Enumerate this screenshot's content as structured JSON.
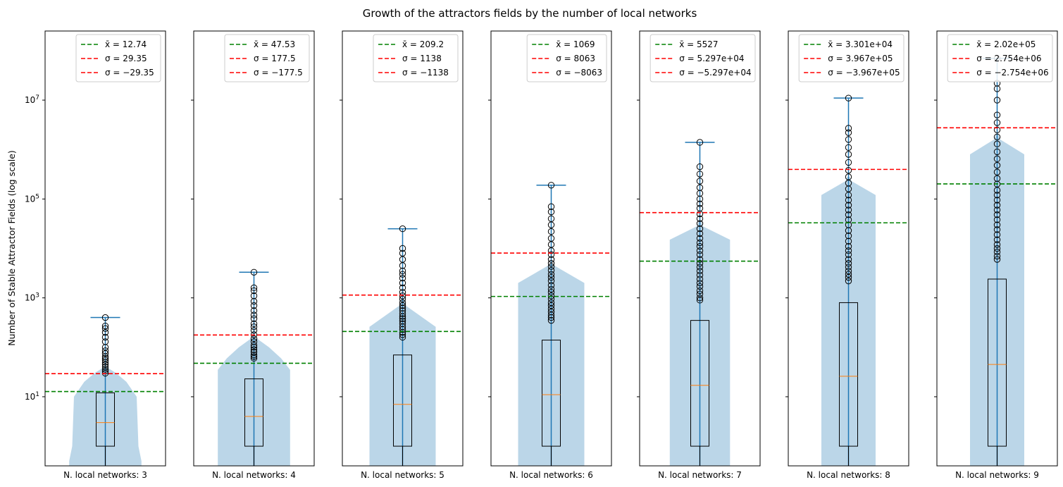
{
  "chart_data": {
    "type": "box+violin",
    "title": "Growth of the attractors fields by the number of local networks",
    "ylabel": "Number of Stable Attractor Fields (log scale)",
    "yscale": "log",
    "ylim": [
      0.4,
      250000000
    ],
    "y_ticks": [
      {
        "value": 10,
        "label": "10^1"
      },
      {
        "value": 1000,
        "label": "10^3"
      },
      {
        "value": 100000,
        "label": "10^5"
      },
      {
        "value": 10000000,
        "label": "10^7"
      }
    ],
    "colors": {
      "mean_line": "#008000",
      "sigma_line": "#ff0000",
      "violin": "#1f77b4",
      "median": "#ff7f0e",
      "whisker": "#1f77b4",
      "box": "#000000"
    },
    "legend_position": "upper right",
    "panels": [
      {
        "xlabel": "N. local networks: 3",
        "mean": 12.74,
        "std": 29.35,
        "legend": [
          "x̄ = 12.74",
          "σ = 29.35",
          "σ = −29.35"
        ],
        "box": {
          "min": 1,
          "q1": 1,
          "median": 3,
          "q3": 12,
          "max": 400
        },
        "outliers": [
          30,
          33,
          36,
          40,
          45,
          50,
          55,
          60,
          65,
          75,
          85,
          100,
          130,
          160,
          200,
          240,
          270,
          400
        ],
        "violin": {
          "y": [
            0.4,
            0.5,
            1,
            10,
            20,
            30,
            40
          ],
          "half_width": [
            0.6,
            0.6,
            0.55,
            0.52,
            0.35,
            0.18,
            0.02
          ]
        }
      },
      {
        "xlabel": "N. local networks: 4",
        "mean": 47.53,
        "std": 177.5,
        "legend": [
          "x̄ = 47.53",
          "σ = 177.5",
          "σ = −177.5"
        ],
        "box": {
          "min": 1,
          "q1": 1,
          "median": 4,
          "q3": 23,
          "max": 3300
        },
        "outliers": [
          60,
          65,
          70,
          80,
          90,
          100,
          110,
          130,
          150,
          180,
          220,
          260,
          300,
          380,
          450,
          550,
          700,
          850,
          1100,
          1400,
          1600,
          3300
        ],
        "violin": {
          "y": [
            0.4,
            35,
            60,
            100,
            130,
            160
          ],
          "half_width": [
            0.6,
            0.6,
            0.45,
            0.25,
            0.12,
            0.02
          ]
        }
      },
      {
        "xlabel": "N. local networks: 5",
        "mean": 209.2,
        "std": 1138,
        "legend": [
          "x̄ = 209.2",
          "σ = 1138",
          "σ = −1138"
        ],
        "box": {
          "min": 1,
          "q1": 1,
          "median": 7,
          "q3": 70,
          "max": 25000
        },
        "outliers": [
          160,
          180,
          200,
          230,
          260,
          300,
          340,
          380,
          420,
          480,
          550,
          620,
          700,
          800,
          950,
          1100,
          1300,
          1600,
          2000,
          2500,
          3000,
          3500,
          4500,
          6000,
          8000,
          10000,
          25000
        ],
        "violin": {
          "y": [
            0.4,
            260,
            700,
            1000
          ],
          "half_width": [
            0.55,
            0.55,
            0.05,
            0.02
          ]
        }
      },
      {
        "xlabel": "N. local networks: 6",
        "mean": 1069,
        "std": 8063,
        "legend": [
          "x̄ = 1069",
          "σ = 8063",
          "σ = −8063"
        ],
        "box": {
          "min": 1,
          "q1": 1,
          "median": 11,
          "q3": 140,
          "max": 190000
        },
        "outliers": [
          350,
          400,
          450,
          520,
          600,
          700,
          800,
          950,
          1100,
          1300,
          1500,
          1800,
          2200,
          2600,
          3000,
          3600,
          4300,
          5000,
          6000,
          7500,
          9000,
          12000,
          16000,
          22000,
          30000,
          40000,
          55000,
          70000,
          190000
        ],
        "violin": {
          "y": [
            0.4,
            2000,
            4500,
            5000
          ],
          "half_width": [
            0.55,
            0.55,
            0.05,
            0.02
          ]
        }
      },
      {
        "xlabel": "N. local networks: 7",
        "mean": 5527,
        "std": 52970,
        "legend": [
          "x̄ = 5527",
          "σ = 5.297e+04",
          "σ = −5.297e+04"
        ],
        "box": {
          "min": 1,
          "q1": 1,
          "median": 17,
          "q3": 350,
          "max": 1400000
        },
        "outliers": [
          900,
          1000,
          1200,
          1400,
          1700,
          2000,
          2400,
          2900,
          3500,
          4200,
          5000,
          6000,
          7500,
          9000,
          11000,
          13000,
          16000,
          20000,
          25000,
          32000,
          40000,
          50000,
          65000,
          80000,
          100000,
          130000,
          170000,
          230000,
          320000,
          450000,
          1400000
        ],
        "violin": {
          "y": [
            0.4,
            15000,
            28000,
            35000
          ],
          "half_width": [
            0.5,
            0.5,
            0.05,
            0.02
          ]
        }
      },
      {
        "xlabel": "N. local networks: 8",
        "mean": 33010,
        "std": 396700,
        "legend": [
          "x̄ = 3.301e+04",
          "σ = 3.967e+05",
          "σ = −3.967e+05"
        ],
        "box": {
          "min": 1,
          "q1": 1,
          "median": 26,
          "q3": 800,
          "max": 11000000
        },
        "outliers": [
          2200,
          2600,
          3000,
          3500,
          4200,
          5000,
          6000,
          7500,
          9000,
          11000,
          14000,
          18000,
          23000,
          30000,
          38000,
          48000,
          60000,
          75000,
          95000,
          120000,
          160000,
          210000,
          280000,
          380000,
          550000,
          800000,
          1100000,
          1600000,
          2200000,
          2700000,
          11000000
        ],
        "violin": {
          "y": [
            0.4,
            120000,
            230000,
            280000
          ],
          "half_width": [
            0.45,
            0.45,
            0.05,
            0.02
          ]
        }
      },
      {
        "xlabel": "N. local networks: 9",
        "mean": 202000,
        "std": 2754000,
        "legend": [
          "x̄ = 2.02e+05",
          "σ = 2.754e+06",
          "σ = −2.754e+06"
        ],
        "box": {
          "min": 1,
          "q1": 1,
          "median": 45,
          "q3": 2400,
          "max": 70000000
        },
        "outliers": [
          6000,
          7000,
          8500,
          10000,
          12000,
          15000,
          19000,
          24000,
          30000,
          38000,
          48000,
          60000,
          75000,
          95000,
          120000,
          150000,
          200000,
          260000,
          350000,
          480000,
          650000,
          900000,
          1300000,
          1800000,
          2500000,
          3500000,
          5000000,
          10000000,
          17000000,
          22000000,
          70000000
        ],
        "violin": {
          "y": [
            0.4,
            800000,
            1600000,
            2000000
          ],
          "half_width": [
            0.45,
            0.45,
            0.05,
            0.02
          ]
        }
      }
    ]
  }
}
